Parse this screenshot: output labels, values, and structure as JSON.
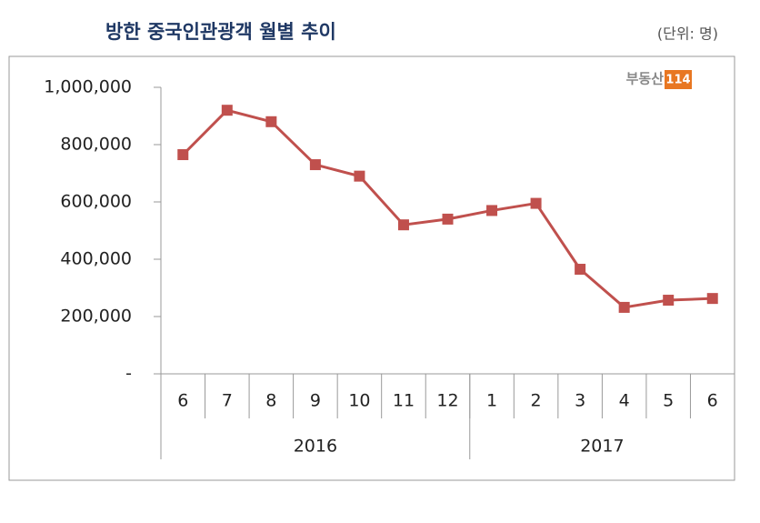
{
  "chart_data": {
    "type": "line",
    "title": "방한 중국인관광객 월별 추이",
    "unit_note": "(단위: 명)",
    "logo": {
      "text": "부동산",
      "badge": "114"
    },
    "categories": [
      "6",
      "7",
      "8",
      "9",
      "10",
      "11",
      "12",
      "1",
      "2",
      "3",
      "4",
      "5",
      "6"
    ],
    "x_groups": [
      {
        "label": "2016",
        "span": 7
      },
      {
        "label": "2017",
        "span": 6
      }
    ],
    "series": [
      {
        "name": "방한 중국인관광객",
        "color": "#c0504d",
        "values": [
          765000,
          920000,
          880000,
          730000,
          690000,
          520000,
          540000,
          570000,
          595000,
          365000,
          232000,
          257000,
          263000
        ]
      }
    ],
    "ylim": [
      0,
      1000000
    ],
    "yticks": [
      {
        "value": 0,
        "label": "-"
      },
      {
        "value": 200000,
        "label": "200,000"
      },
      {
        "value": 400000,
        "label": "400,000"
      },
      {
        "value": 600000,
        "label": "600,000"
      },
      {
        "value": 800000,
        "label": "800,000"
      },
      {
        "value": 1000000,
        "label": "1,000,000"
      }
    ],
    "grid": false
  }
}
